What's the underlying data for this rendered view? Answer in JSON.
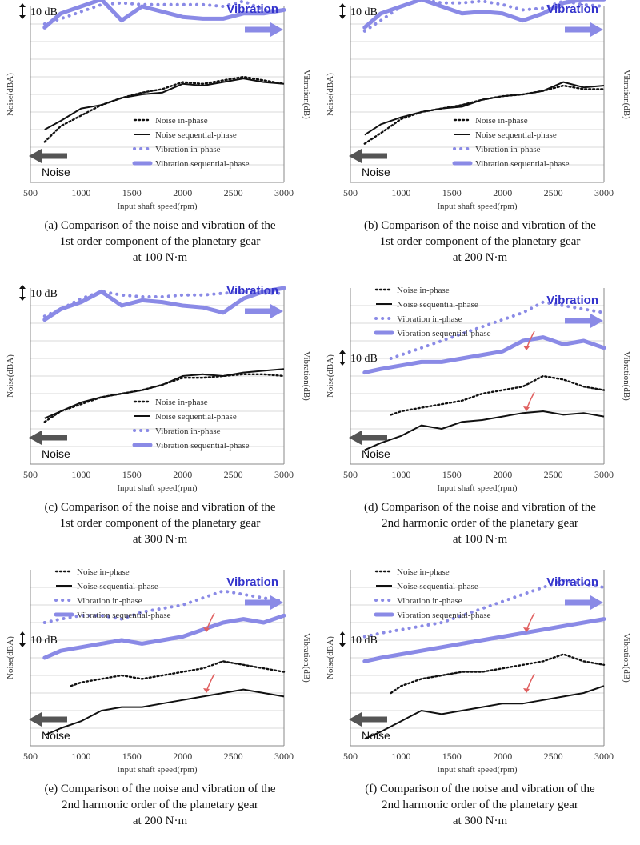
{
  "colors": {
    "noise": "#111111",
    "vibration": "#8a8ae6",
    "vibration_label": "#3333cc",
    "noise_arrow": "#555555",
    "annotation_arrow": "#e06060",
    "grid": "#d9d9d9"
  },
  "chart_data": [
    {
      "type": "line",
      "panel_id": "a",
      "xlabel": "Input shaft speed(rpm)",
      "ylabel_left": "Noise(dBA)",
      "ylabel_right": "Vibration(dB)",
      "xlim": [
        500,
        3000
      ],
      "ylim": [
        0,
        100
      ],
      "xticks": [
        "500",
        "1000",
        "1500",
        "2000",
        "2500",
        "3000"
      ],
      "scale_bar": "10 dB",
      "label_vibration": "Vibration",
      "label_noise": "Noise",
      "legend": [
        "Noise in-phase",
        "Noise sequential-phase",
        "Vibration in-phase",
        "Vibration sequential-phase"
      ],
      "legend_position": "bottom-center",
      "annotation_arrows": false,
      "series": [
        {
          "name": "Noise in-phase",
          "x": [
            640,
            800,
            1000,
            1200,
            1400,
            1600,
            1800,
            2000,
            2200,
            2400,
            2600,
            2800,
            3000
          ],
          "y": [
            23,
            32,
            38,
            44,
            48,
            51,
            53,
            57,
            56,
            58,
            60,
            58,
            56
          ]
        },
        {
          "name": "Noise sequential-phase",
          "x": [
            640,
            800,
            1000,
            1200,
            1400,
            1600,
            1800,
            2000,
            2200,
            2400,
            2600,
            2800,
            3000
          ],
          "y": [
            30,
            35,
            42,
            44,
            48,
            50,
            51,
            56,
            55,
            57,
            59,
            57,
            56
          ]
        },
        {
          "name": "Vibration in-phase",
          "x": [
            640,
            800,
            1000,
            1200,
            1400,
            1600,
            1800,
            2000,
            2200,
            2400,
            2600,
            2800,
            3000
          ],
          "y": [
            90,
            93,
            97,
            101,
            102,
            101,
            101,
            101,
            101,
            100,
            103,
            98,
            97
          ]
        },
        {
          "name": "Vibration sequential-phase",
          "x": [
            640,
            800,
            1000,
            1200,
            1400,
            1600,
            1800,
            2000,
            2200,
            2400,
            2600,
            2800,
            3000
          ],
          "y": [
            88,
            96,
            100,
            104,
            92,
            100,
            97,
            94,
            93,
            93,
            96,
            96,
            98
          ]
        }
      ]
    },
    {
      "type": "line",
      "panel_id": "b",
      "xlabel": "Input shaft speed(rpm)",
      "ylabel_left": "Noise(dBA)",
      "ylabel_right": "Vibration(dB)",
      "xlim": [
        500,
        3000
      ],
      "ylim": [
        0,
        100
      ],
      "xticks": [
        "500",
        "1000",
        "1500",
        "2000",
        "2500",
        "3000"
      ],
      "scale_bar": "10 dB",
      "label_vibration": "Vibration",
      "label_noise": "Noise",
      "legend": [
        "Noise in-phase",
        "Noise sequential-phase",
        "Vibration in-phase",
        "Vibration sequential-phase"
      ],
      "legend_position": "bottom-center",
      "annotation_arrows": false,
      "series": [
        {
          "name": "Noise in-phase",
          "x": [
            640,
            800,
            1000,
            1200,
            1400,
            1600,
            1800,
            2000,
            2200,
            2400,
            2600,
            2800,
            3000
          ],
          "y": [
            22,
            28,
            36,
            40,
            42,
            44,
            47,
            49,
            50,
            52,
            55,
            53,
            53
          ]
        },
        {
          "name": "Noise sequential-phase",
          "x": [
            640,
            800,
            1000,
            1200,
            1400,
            1600,
            1800,
            2000,
            2200,
            2400,
            2600,
            2800,
            3000
          ],
          "y": [
            27,
            33,
            37,
            40,
            42,
            43,
            47,
            49,
            50,
            52,
            57,
            54,
            55
          ]
        },
        {
          "name": "Vibration in-phase",
          "x": [
            640,
            800,
            1000,
            1200,
            1400,
            1600,
            1800,
            2000,
            2200,
            2400,
            2600,
            2800,
            3000
          ],
          "y": [
            86,
            92,
            100,
            104,
            102,
            102,
            103,
            101,
            98,
            99,
            103,
            101,
            100
          ]
        },
        {
          "name": "Vibration sequential-phase",
          "x": [
            640,
            800,
            1000,
            1200,
            1400,
            1600,
            1800,
            2000,
            2200,
            2400,
            2600,
            2800,
            3000
          ],
          "y": [
            88,
            96,
            100,
            104,
            100,
            96,
            97,
            96,
            92,
            96,
            102,
            104,
            104
          ]
        }
      ]
    },
    {
      "type": "line",
      "panel_id": "c",
      "xlabel": "Input shaft speed(rpm)",
      "ylabel_left": "Noise(dBA)",
      "ylabel_right": "Vibration(dB)",
      "xlim": [
        500,
        3000
      ],
      "ylim": [
        0,
        100
      ],
      "xticks": [
        "500",
        "1000",
        "1500",
        "2000",
        "2500",
        "3000"
      ],
      "scale_bar": "10 dB",
      "label_vibration": "Vibration",
      "label_noise": "Noise",
      "legend": [
        "Noise in-phase",
        "Noise sequential-phase",
        "Vibration in-phase",
        "Vibration sequential-phase"
      ],
      "legend_position": "bottom-center",
      "annotation_arrows": false,
      "series": [
        {
          "name": "Noise in-phase",
          "x": [
            640,
            800,
            1000,
            1200,
            1400,
            1600,
            1800,
            2000,
            2200,
            2400,
            2600,
            2800,
            3000
          ],
          "y": [
            24,
            30,
            34,
            38,
            40,
            42,
            45,
            49,
            49,
            50,
            51,
            51,
            50
          ]
        },
        {
          "name": "Noise sequential-phase",
          "x": [
            640,
            800,
            1000,
            1200,
            1400,
            1600,
            1800,
            2000,
            2200,
            2400,
            2600,
            2800,
            3000
          ],
          "y": [
            26,
            30,
            35,
            38,
            40,
            42,
            45,
            50,
            51,
            50,
            52,
            53,
            54
          ]
        },
        {
          "name": "Vibration in-phase",
          "x": [
            640,
            800,
            1000,
            1200,
            1400,
            1600,
            1800,
            2000,
            2200,
            2400,
            2600,
            2800,
            3000
          ],
          "y": [
            84,
            88,
            94,
            98,
            96,
            95,
            95,
            96,
            96,
            97,
            98,
            97,
            97
          ]
        },
        {
          "name": "Vibration sequential-phase",
          "x": [
            640,
            800,
            1000,
            1200,
            1400,
            1600,
            1800,
            2000,
            2200,
            2400,
            2600,
            2800,
            3000
          ],
          "y": [
            82,
            88,
            92,
            98,
            90,
            93,
            92,
            90,
            89,
            86,
            94,
            98,
            100
          ]
        }
      ]
    },
    {
      "type": "line",
      "panel_id": "d",
      "xlabel": "Input shaft speed(rpm)",
      "ylabel_left": "Noise(dBA)",
      "ylabel_right": "Vibration(dB)",
      "xlim": [
        500,
        3000
      ],
      "ylim": [
        0,
        100
      ],
      "xticks": [
        "500",
        "1000",
        "1500",
        "2000",
        "2500",
        "3000"
      ],
      "scale_bar": "10 dB",
      "label_vibration": "Vibration",
      "label_noise": "Noise",
      "legend": [
        "Noise in-phase",
        "Noise sequential-phase",
        "Vibration in-phase",
        "Vibration sequential-phase"
      ],
      "legend_position": "top-left",
      "annotation_arrows": true,
      "series": [
        {
          "name": "Noise in-phase",
          "x": [
            900,
            1000,
            1200,
            1400,
            1600,
            1800,
            2000,
            2200,
            2400,
            2600,
            2800,
            3000
          ],
          "y": [
            28,
            30,
            32,
            34,
            36,
            40,
            42,
            44,
            50,
            48,
            44,
            42
          ]
        },
        {
          "name": "Noise sequential-phase",
          "x": [
            640,
            800,
            1000,
            1200,
            1400,
            1600,
            1800,
            2000,
            2200,
            2400,
            2600,
            2800,
            3000
          ],
          "y": [
            8,
            12,
            16,
            22,
            20,
            24,
            25,
            27,
            29,
            30,
            28,
            29,
            27
          ]
        },
        {
          "name": "Vibration in-phase",
          "x": [
            900,
            1000,
            1200,
            1400,
            1600,
            1800,
            2000,
            2200,
            2400,
            2600,
            2800,
            3000
          ],
          "y": [
            60,
            62,
            66,
            70,
            74,
            78,
            82,
            86,
            92,
            90,
            88,
            86
          ]
        },
        {
          "name": "Vibration sequential-phase",
          "x": [
            640,
            800,
            1000,
            1200,
            1400,
            1600,
            1800,
            2000,
            2200,
            2400,
            2600,
            2800,
            3000
          ],
          "y": [
            52,
            54,
            56,
            58,
            58,
            60,
            62,
            64,
            70,
            72,
            68,
            70,
            66
          ]
        }
      ]
    },
    {
      "type": "line",
      "panel_id": "e",
      "xlabel": "Input shaft speed(rpm)",
      "ylabel_left": "Noise(dBA)",
      "ylabel_right": "Vibration(dB)",
      "xlim": [
        500,
        3000
      ],
      "ylim": [
        0,
        100
      ],
      "xticks": [
        "500",
        "1000",
        "1500",
        "2000",
        "2500",
        "3000"
      ],
      "scale_bar": "10 dB",
      "label_vibration": "Vibration",
      "label_noise": "Noise",
      "legend": [
        "Noise in-phase",
        "Noise sequential-phase",
        "Vibration in-phase",
        "Vibration sequential-phase"
      ],
      "legend_position": "top-left",
      "annotation_arrows": true,
      "series": [
        {
          "name": "Noise in-phase",
          "x": [
            900,
            1000,
            1200,
            1400,
            1600,
            1800,
            2000,
            2200,
            2400,
            2600,
            2800,
            3000
          ],
          "y": [
            34,
            36,
            38,
            40,
            38,
            40,
            42,
            44,
            48,
            46,
            44,
            42
          ]
        },
        {
          "name": "Noise sequential-phase",
          "x": [
            640,
            800,
            1000,
            1200,
            1400,
            1600,
            1800,
            2000,
            2200,
            2400,
            2600,
            2800,
            3000
          ],
          "y": [
            6,
            10,
            14,
            20,
            22,
            22,
            24,
            26,
            28,
            30,
            32,
            30,
            28
          ]
        },
        {
          "name": "Vibration in-phase",
          "x": [
            640,
            800,
            1000,
            1200,
            1400,
            1600,
            1800,
            2000,
            2200,
            2400,
            2600,
            2800,
            3000
          ],
          "y": [
            70,
            72,
            74,
            74,
            72,
            76,
            78,
            80,
            84,
            88,
            86,
            84,
            82
          ]
        },
        {
          "name": "Vibration sequential-phase",
          "x": [
            640,
            800,
            1000,
            1200,
            1400,
            1600,
            1800,
            2000,
            2200,
            2400,
            2600,
            2800,
            3000
          ],
          "y": [
            50,
            54,
            56,
            58,
            60,
            58,
            60,
            62,
            66,
            70,
            72,
            70,
            74
          ]
        }
      ]
    },
    {
      "type": "line",
      "panel_id": "f",
      "xlabel": "Input shaft speed(rpm)",
      "ylabel_left": "Noise(dBA)",
      "ylabel_right": "Vibration(dB)",
      "xlim": [
        500,
        3000
      ],
      "ylim": [
        0,
        100
      ],
      "xticks": [
        "500",
        "1000",
        "1500",
        "2000",
        "2500",
        "3000"
      ],
      "scale_bar": "10 dB",
      "label_vibration": "Vibration",
      "label_noise": "Noise",
      "legend": [
        "Noise in-phase",
        "Noise sequential-phase",
        "Vibration in-phase",
        "Vibration sequential-phase"
      ],
      "legend_position": "top-left",
      "annotation_arrows": true,
      "series": [
        {
          "name": "Noise in-phase",
          "x": [
            900,
            1000,
            1200,
            1400,
            1600,
            1800,
            2000,
            2200,
            2400,
            2600,
            2800,
            3000
          ],
          "y": [
            30,
            34,
            38,
            40,
            42,
            42,
            44,
            46,
            48,
            52,
            48,
            46
          ]
        },
        {
          "name": "Noise sequential-phase",
          "x": [
            640,
            800,
            1000,
            1200,
            1400,
            1600,
            1800,
            2000,
            2200,
            2400,
            2600,
            2800,
            3000
          ],
          "y": [
            4,
            8,
            14,
            20,
            18,
            20,
            22,
            24,
            24,
            26,
            28,
            30,
            34
          ]
        },
        {
          "name": "Vibration in-phase",
          "x": [
            640,
            800,
            1000,
            1200,
            1400,
            1600,
            1800,
            2000,
            2200,
            2400,
            2600,
            2800,
            3000
          ],
          "y": [
            62,
            64,
            66,
            68,
            70,
            74,
            78,
            82,
            86,
            90,
            94,
            92,
            90
          ]
        },
        {
          "name": "Vibration sequential-phase",
          "x": [
            640,
            800,
            1000,
            1200,
            1400,
            1600,
            1800,
            2000,
            2200,
            2400,
            2600,
            2800,
            3000
          ],
          "y": [
            48,
            50,
            52,
            54,
            56,
            58,
            60,
            62,
            64,
            66,
            68,
            70,
            72
          ]
        }
      ]
    }
  ],
  "captions": [
    {
      "lines": [
        "(a)  Comparison of the noise and vibration of the",
        "1st order component of the planetary gear",
        "at  100 N·m"
      ]
    },
    {
      "lines": [
        "(b)  Comparison of the noise and vibration of the",
        "1st order component of the planetary gear",
        "at  200 N·m"
      ]
    },
    {
      "lines": [
        "(c)  Comparison of the noise and vibration of the",
        "1st order component of the planetary gear",
        "at  300 N·m"
      ]
    },
    {
      "lines": [
        "(d)  Comparison of the noise and vibration of the",
        "2nd  harmonic order of the planetary gear",
        "at  100 N·m"
      ]
    },
    {
      "lines": [
        "(e)  Comparison of the noise and vibration of the",
        "2nd harmonic order of the planetary gear",
        "at  200 N·m"
      ]
    },
    {
      "lines": [
        "(f)  Comparison of the noise and vibration of the",
        "2nd harmonic order of the planetary gear",
        "at  300 N·m"
      ]
    }
  ]
}
